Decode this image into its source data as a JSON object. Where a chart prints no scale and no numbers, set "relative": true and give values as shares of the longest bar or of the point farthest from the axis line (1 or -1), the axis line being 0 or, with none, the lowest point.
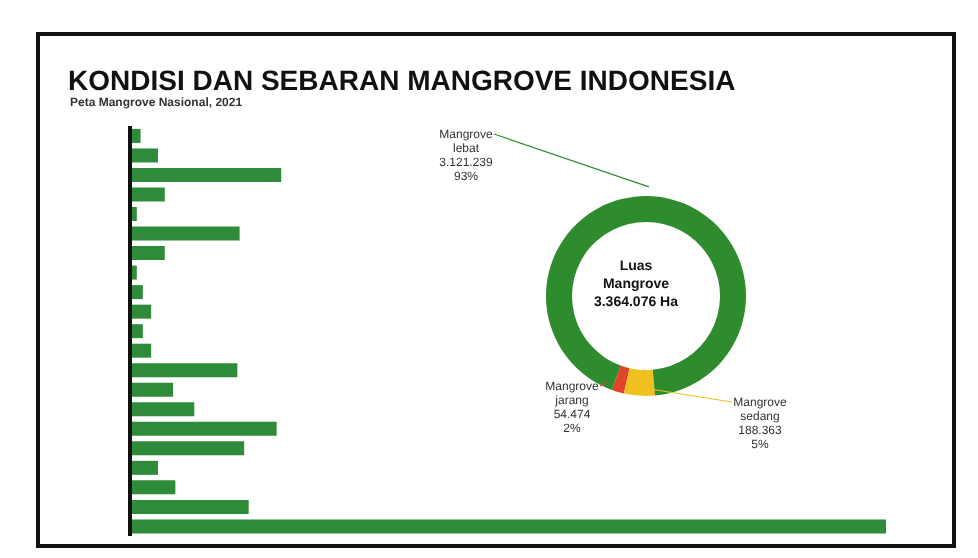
{
  "chart_data": [
    {
      "type": "bar",
      "orientation": "horizontal",
      "title": "KONDISI DAN SEBARAN MANGROVE INDONESIA",
      "subtitle": "Peta Mangrove Nasional, 2021",
      "relative": true,
      "categories": [
        null,
        null,
        null,
        null,
        null,
        null,
        null,
        null,
        null,
        null,
        null,
        null,
        null,
        null,
        null,
        null,
        null,
        null,
        null,
        null,
        null
      ],
      "values": [
        0.014,
        0.037,
        0.2,
        0.046,
        0.009,
        0.145,
        0.046,
        0.009,
        0.017,
        0.028,
        0.017,
        0.028,
        0.142,
        0.057,
        0.085,
        0.194,
        0.151,
        0.037,
        0.06,
        0.157,
        1
      ],
      "color": "#2e8b3a"
    },
    {
      "type": "donut",
      "categories": [
        "Mangrove jarang",
        "Mangrove sedang",
        "Mangrove lebat"
      ],
      "values": [
        2,
        5,
        93
      ],
      "colors": [
        "#e0452a",
        "#f0c020",
        "#2e8b2e"
      ],
      "value_labels": [
        "54.474 2%",
        "188.363 5%",
        "3.121.239 93%"
      ],
      "annotations": [
        "Luas",
        "Mangrove",
        "3.364.076 Ha"
      ]
    }
  ]
}
